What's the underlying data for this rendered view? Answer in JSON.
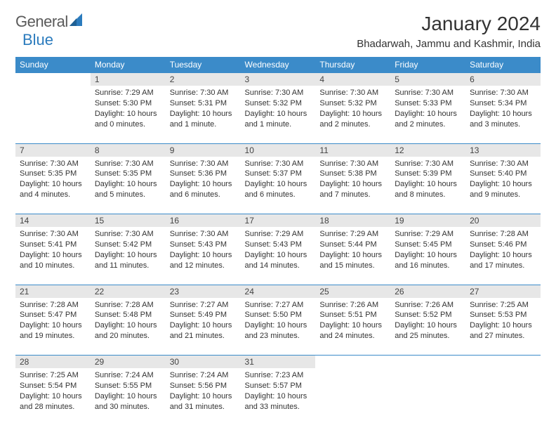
{
  "logo": {
    "text_left": "General",
    "text_right": "Blue"
  },
  "colors": {
    "header_bg": "#3b8bc9",
    "header_text": "#ffffff",
    "daynum_bg": "#e7e7e7",
    "border": "#3b8bc9",
    "logo_gray": "#5a5a5a",
    "logo_blue": "#2b7bbd",
    "text": "#333333"
  },
  "title": "January 2024",
  "location": "Bhadarwah, Jammu and Kashmir, India",
  "weekdays": [
    "Sunday",
    "Monday",
    "Tuesday",
    "Wednesday",
    "Thursday",
    "Friday",
    "Saturday"
  ],
  "weeks": [
    [
      null,
      {
        "n": "1",
        "sr": "7:29 AM",
        "ss": "5:30 PM",
        "dl": "10 hours and 0 minutes."
      },
      {
        "n": "2",
        "sr": "7:30 AM",
        "ss": "5:31 PM",
        "dl": "10 hours and 1 minute."
      },
      {
        "n": "3",
        "sr": "7:30 AM",
        "ss": "5:32 PM",
        "dl": "10 hours and 1 minute."
      },
      {
        "n": "4",
        "sr": "7:30 AM",
        "ss": "5:32 PM",
        "dl": "10 hours and 2 minutes."
      },
      {
        "n": "5",
        "sr": "7:30 AM",
        "ss": "5:33 PM",
        "dl": "10 hours and 2 minutes."
      },
      {
        "n": "6",
        "sr": "7:30 AM",
        "ss": "5:34 PM",
        "dl": "10 hours and 3 minutes."
      }
    ],
    [
      {
        "n": "7",
        "sr": "7:30 AM",
        "ss": "5:35 PM",
        "dl": "10 hours and 4 minutes."
      },
      {
        "n": "8",
        "sr": "7:30 AM",
        "ss": "5:35 PM",
        "dl": "10 hours and 5 minutes."
      },
      {
        "n": "9",
        "sr": "7:30 AM",
        "ss": "5:36 PM",
        "dl": "10 hours and 6 minutes."
      },
      {
        "n": "10",
        "sr": "7:30 AM",
        "ss": "5:37 PM",
        "dl": "10 hours and 6 minutes."
      },
      {
        "n": "11",
        "sr": "7:30 AM",
        "ss": "5:38 PM",
        "dl": "10 hours and 7 minutes."
      },
      {
        "n": "12",
        "sr": "7:30 AM",
        "ss": "5:39 PM",
        "dl": "10 hours and 8 minutes."
      },
      {
        "n": "13",
        "sr": "7:30 AM",
        "ss": "5:40 PM",
        "dl": "10 hours and 9 minutes."
      }
    ],
    [
      {
        "n": "14",
        "sr": "7:30 AM",
        "ss": "5:41 PM",
        "dl": "10 hours and 10 minutes."
      },
      {
        "n": "15",
        "sr": "7:30 AM",
        "ss": "5:42 PM",
        "dl": "10 hours and 11 minutes."
      },
      {
        "n": "16",
        "sr": "7:30 AM",
        "ss": "5:43 PM",
        "dl": "10 hours and 12 minutes."
      },
      {
        "n": "17",
        "sr": "7:29 AM",
        "ss": "5:43 PM",
        "dl": "10 hours and 14 minutes."
      },
      {
        "n": "18",
        "sr": "7:29 AM",
        "ss": "5:44 PM",
        "dl": "10 hours and 15 minutes."
      },
      {
        "n": "19",
        "sr": "7:29 AM",
        "ss": "5:45 PM",
        "dl": "10 hours and 16 minutes."
      },
      {
        "n": "20",
        "sr": "7:28 AM",
        "ss": "5:46 PM",
        "dl": "10 hours and 17 minutes."
      }
    ],
    [
      {
        "n": "21",
        "sr": "7:28 AM",
        "ss": "5:47 PM",
        "dl": "10 hours and 19 minutes."
      },
      {
        "n": "22",
        "sr": "7:28 AM",
        "ss": "5:48 PM",
        "dl": "10 hours and 20 minutes."
      },
      {
        "n": "23",
        "sr": "7:27 AM",
        "ss": "5:49 PM",
        "dl": "10 hours and 21 minutes."
      },
      {
        "n": "24",
        "sr": "7:27 AM",
        "ss": "5:50 PM",
        "dl": "10 hours and 23 minutes."
      },
      {
        "n": "25",
        "sr": "7:26 AM",
        "ss": "5:51 PM",
        "dl": "10 hours and 24 minutes."
      },
      {
        "n": "26",
        "sr": "7:26 AM",
        "ss": "5:52 PM",
        "dl": "10 hours and 25 minutes."
      },
      {
        "n": "27",
        "sr": "7:25 AM",
        "ss": "5:53 PM",
        "dl": "10 hours and 27 minutes."
      }
    ],
    [
      {
        "n": "28",
        "sr": "7:25 AM",
        "ss": "5:54 PM",
        "dl": "10 hours and 28 minutes."
      },
      {
        "n": "29",
        "sr": "7:24 AM",
        "ss": "5:55 PM",
        "dl": "10 hours and 30 minutes."
      },
      {
        "n": "30",
        "sr": "7:24 AM",
        "ss": "5:56 PM",
        "dl": "10 hours and 31 minutes."
      },
      {
        "n": "31",
        "sr": "7:23 AM",
        "ss": "5:57 PM",
        "dl": "10 hours and 33 minutes."
      },
      null,
      null,
      null
    ]
  ],
  "labels": {
    "sunrise": "Sunrise: ",
    "sunset": "Sunset: ",
    "daylight": "Daylight: "
  }
}
